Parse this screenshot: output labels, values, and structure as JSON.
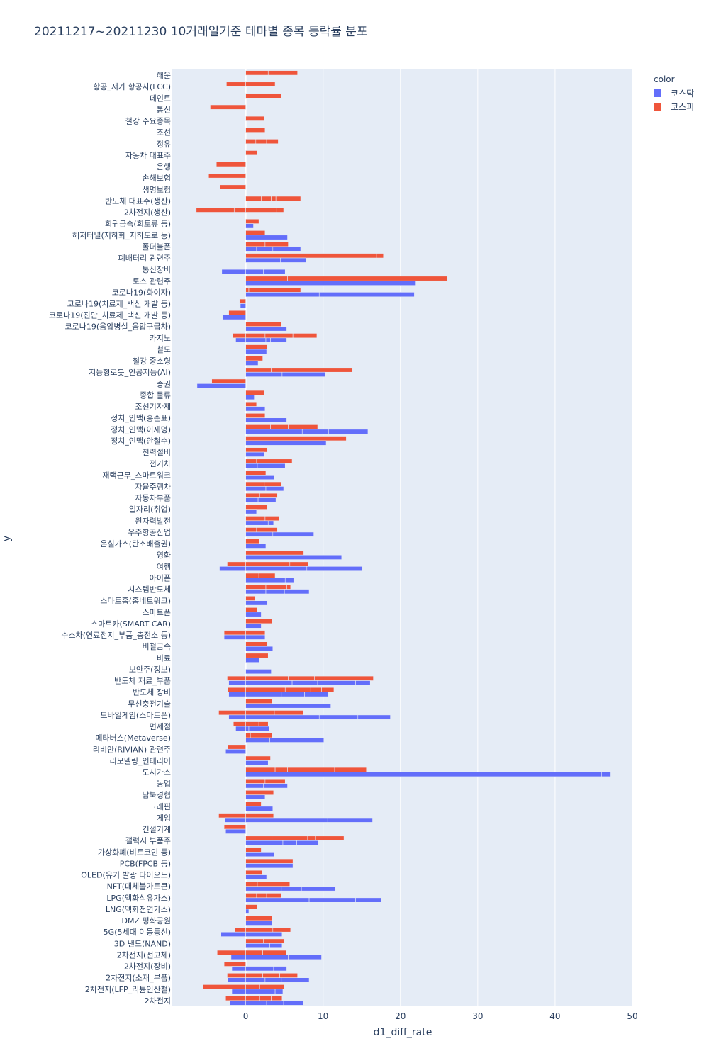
{
  "chart_data": {
    "type": "bar",
    "orientation": "horizontal",
    "barmode": "stacked-segments",
    "title": "20211217~20211230 10거래일기준 테마별 종목 등락률 분포",
    "xlabel": "d1_diff_rate",
    "ylabel": "y",
    "xlim": [
      -9.5,
      50
    ],
    "xticks": [
      0,
      10,
      20,
      30,
      40,
      50
    ],
    "grid": true,
    "legend": {
      "title": "color",
      "placement": "top-right",
      "entries": [
        {
          "name": "코스닥",
          "color": "#636efa"
        },
        {
          "name": "코스피",
          "color": "#ef553b"
        }
      ]
    },
    "series": [
      {
        "name": "코스닥",
        "color": "#636efa"
      },
      {
        "name": "코스피",
        "color": "#ef553b"
      }
    ],
    "categories": [
      {
        "label": "해운",
        "kosdaq": [],
        "kospi": [
          2.9,
          3.8
        ]
      },
      {
        "label": "항공_저가 항공사(LCC)",
        "kosdaq": [],
        "kospi": [
          -2.5,
          3.8
        ]
      },
      {
        "label": "페인트",
        "kosdaq": [],
        "kospi": [
          4.6
        ]
      },
      {
        "label": "통신",
        "kosdaq": [],
        "kospi": [
          -4.6
        ]
      },
      {
        "label": "철강 주요종목",
        "kosdaq": [],
        "kospi": [
          2.4
        ]
      },
      {
        "label": "조선",
        "kosdaq": [],
        "kospi": [
          2.5
        ]
      },
      {
        "label": "정유",
        "kosdaq": [],
        "kospi": [
          1.3,
          1.4,
          1.5
        ]
      },
      {
        "label": "자동차 대표주",
        "kosdaq": [],
        "kospi": [
          1.5
        ]
      },
      {
        "label": "은행",
        "kosdaq": [],
        "kospi": [
          -3.8
        ]
      },
      {
        "label": "손해보험",
        "kosdaq": [],
        "kospi": [
          -4.8
        ]
      },
      {
        "label": "생명보험",
        "kosdaq": [],
        "kospi": [
          -3.3
        ]
      },
      {
        "label": "반도체 대표주(생산)",
        "kosdaq": [],
        "kospi": [
          2.0,
          1.3,
          0.6,
          3.2
        ]
      },
      {
        "label": "2차전지(생산)",
        "kosdaq": [],
        "kospi": [
          -1.5,
          -4.9,
          4.0,
          0.9
        ]
      },
      {
        "label": "희귀금속(희토류 등)",
        "kosdaq": [
          1.0
        ],
        "kospi": [
          1.7
        ]
      },
      {
        "label": "해저터널(지하화_지하도로 등)",
        "kosdaq": [
          5.4
        ],
        "kospi": [
          2.5
        ]
      },
      {
        "label": "폴더블폰",
        "kosdaq": [
          1.4,
          2.1,
          3.6
        ],
        "kospi": [
          2.5,
          0.5,
          2.5
        ]
      },
      {
        "label": "폐배터리 관련주",
        "kosdaq": [
          4.5,
          3.3
        ],
        "kospi": [
          16.9,
          0.9
        ]
      },
      {
        "label": "통신장비",
        "kosdaq": [
          -3.1,
          2.3,
          2.8
        ],
        "kospi": []
      },
      {
        "label": "토스 관련주",
        "kosdaq": [
          15.3,
          6.7
        ],
        "kospi": [
          5.4,
          20.7
        ]
      },
      {
        "label": "코로나19(화이자)",
        "kosdaq": [
          9.5,
          12.3
        ],
        "kospi": [
          0.4,
          6.7
        ]
      },
      {
        "label": "코로나19(치료제_백신 개발 등)",
        "kosdaq": [
          -0.7
        ],
        "kospi": [
          -0.8
        ]
      },
      {
        "label": "코로나19(진단_치료제_백신 개발 등)",
        "kosdaq": [
          -3.0
        ],
        "kospi": [
          -2.2
        ]
      },
      {
        "label": "코로나19(음압병실_음압구급차)",
        "kosdaq": [
          5.3
        ],
        "kospi": [
          4.6
        ]
      },
      {
        "label": "카지노",
        "kosdaq": [
          -1.3,
          2.6,
          0.6,
          2.1
        ],
        "kospi": [
          -1.7,
          2.5,
          3.6,
          3.1
        ]
      },
      {
        "label": "철도",
        "kosdaq": [
          2.7
        ],
        "kospi": [
          2.8
        ]
      },
      {
        "label": "철강 중소형",
        "kosdaq": [
          1.6
        ],
        "kospi": [
          2.2
        ]
      },
      {
        "label": "지능형로봇_인공지능(AI)",
        "kosdaq": [
          4.7,
          5.6
        ],
        "kospi": [
          3.3,
          10.5
        ]
      },
      {
        "label": "증권",
        "kosdaq": [
          -6.3
        ],
        "kospi": [
          -4.4
        ]
      },
      {
        "label": "종합 물류",
        "kosdaq": [
          1.1
        ],
        "kospi": [
          2.4
        ]
      },
      {
        "label": "조선기자재",
        "kosdaq": [
          2.5
        ],
        "kospi": [
          1.4
        ]
      },
      {
        "label": "정치_인맥(홍준표)",
        "kosdaq": [
          5.3
        ],
        "kospi": [
          2.5
        ]
      },
      {
        "label": "정치_인맥(이재명)",
        "kosdaq": [
          7.3,
          3.4,
          5.1
        ],
        "kospi": [
          3.2,
          2.3,
          3.8
        ]
      },
      {
        "label": "정치_인맥(안철수)",
        "kosdaq": [
          10.4
        ],
        "kospi": [
          13.0
        ]
      },
      {
        "label": "전력설비",
        "kosdaq": [
          2.4
        ],
        "kospi": [
          2.8
        ]
      },
      {
        "label": "전기차",
        "kosdaq": [
          1.5,
          3.6
        ],
        "kospi": [
          1.4,
          4.6
        ]
      },
      {
        "label": "재택근무_스마트워크",
        "kosdaq": [
          3.7
        ],
        "kospi": [
          2.6
        ]
      },
      {
        "label": "자율주행차",
        "kosdaq": [
          2.6,
          2.3
        ],
        "kospi": [
          2.4,
          2.2
        ]
      },
      {
        "label": "자동차부품",
        "kosdaq": [
          1.6,
          2.3
        ],
        "kospi": [
          1.8,
          2.3
        ]
      },
      {
        "label": "일자리(취업)",
        "kosdaq": [
          1.4
        ],
        "kospi": [
          2.8
        ]
      },
      {
        "label": "원자력발전",
        "kosdaq": [
          2.9,
          0.7
        ],
        "kospi": [
          2.5,
          1.8
        ]
      },
      {
        "label": "우주항공산업",
        "kosdaq": [
          3.5,
          5.3
        ],
        "kospi": [
          1.4,
          2.7
        ]
      },
      {
        "label": "온실가스(탄소배출권)",
        "kosdaq": [
          2.6
        ],
        "kospi": [
          1.8
        ]
      },
      {
        "label": "영화",
        "kosdaq": [
          12.4
        ],
        "kospi": [
          7.5
        ]
      },
      {
        "label": "여행",
        "kosdaq": [
          -3.4,
          7.9,
          7.2
        ],
        "kospi": [
          -2.4,
          5.7,
          2.4
        ]
      },
      {
        "label": "아이폰",
        "kosdaq": [
          5.1,
          1.1
        ],
        "kospi": [
          1.7,
          2.1
        ]
      },
      {
        "label": "시스템반도체",
        "kosdaq": [
          2.6,
          2.4,
          3.2
        ],
        "kospi": [
          2.6,
          2.7,
          0.5
        ]
      },
      {
        "label": "스마트홈(홈네트워크)",
        "kosdaq": [
          2.8
        ],
        "kospi": [
          1.2
        ]
      },
      {
        "label": "스마트폰",
        "kosdaq": [
          2.0
        ],
        "kospi": [
          1.5
        ]
      },
      {
        "label": "스마트카(SMART CAR)",
        "kosdaq": [
          2.0
        ],
        "kospi": [
          3.4
        ]
      },
      {
        "label": "수소차(연료전지_부품_충전소 등)",
        "kosdaq": [
          -2.8,
          2.5
        ],
        "kospi": [
          -2.8,
          2.5
        ]
      },
      {
        "label": "비철금속",
        "kosdaq": [
          3.5
        ],
        "kospi": [
          2.8
        ]
      },
      {
        "label": "비료",
        "kosdaq": [
          1.8
        ],
        "kospi": [
          2.9
        ]
      },
      {
        "label": "보안주(정보)",
        "kosdaq": [
          3.3
        ],
        "kospi": []
      },
      {
        "label": "반도체 재료_부품",
        "kosdaq": [
          -2.2,
          6.0,
          3.3,
          4.9,
          1.9
        ],
        "kospi": [
          -2.4,
          5.5,
          3.4,
          3.3,
          2.2,
          2.1
        ]
      },
      {
        "label": "반도체 장비",
        "kosdaq": [
          -2.2,
          4.6,
          3.0,
          3.1
        ],
        "kospi": [
          -2.3,
          5.1,
          3.3,
          1.4,
          1.6
        ]
      },
      {
        "label": "무선충전기술",
        "kosdaq": [
          11.0
        ],
        "kospi": [
          3.4
        ]
      },
      {
        "label": "모바일게임(스마트폰)",
        "kosdaq": [
          -2.2,
          9.5,
          5.0,
          4.2
        ],
        "kospi": [
          -3.5,
          3.7,
          3.7
        ]
      },
      {
        "label": "면세점",
        "kosdaq": [
          -1.3,
          0.4,
          2.6
        ],
        "kospi": [
          -1.6,
          1.7,
          1.2
        ]
      },
      {
        "label": "메타버스(Metaverse)",
        "kosdaq": [
          3.1,
          7.0
        ],
        "kospi": [
          0.6,
          2.8
        ]
      },
      {
        "label": "리비안(RIVIAN) 관련주",
        "kosdaq": [
          -2.6
        ],
        "kospi": [
          -2.3
        ]
      },
      {
        "label": "리모델링_인테리어",
        "kosdaq": [
          2.9
        ],
        "kospi": [
          3.2
        ]
      },
      {
        "label": "도시가스",
        "kosdaq": [
          46.0,
          1.2
        ],
        "kospi": [
          3.8,
          1.6,
          6.1,
          4.1
        ]
      },
      {
        "label": "농업",
        "kosdaq": [
          2.3,
          3.1
        ],
        "kospi": [
          2.5,
          2.6
        ]
      },
      {
        "label": "남북경협",
        "kosdaq": [
          2.5
        ],
        "kospi": [
          3.6
        ]
      },
      {
        "label": "그래핀",
        "kosdaq": [
          3.5
        ],
        "kospi": [
          2.0
        ]
      },
      {
        "label": "게임",
        "kosdaq": [
          -2.7,
          10.6,
          4.7,
          1.1
        ],
        "kospi": [
          -3.5,
          1.2,
          2.4
        ]
      },
      {
        "label": "건설기계",
        "kosdaq": [
          -2.6
        ],
        "kospi": [
          -2.8
        ]
      },
      {
        "label": "갤럭시 부품주",
        "kosdaq": [
          4.8,
          1.8,
          2.8
        ],
        "kospi": [
          3.4,
          4.6,
          1.0,
          3.7
        ]
      },
      {
        "label": "가상화폐(비트코인 등)",
        "kosdaq": [
          3.7
        ],
        "kospi": [
          2.0
        ]
      },
      {
        "label": "PCB(FPCB 등)",
        "kosdaq": [
          6.1
        ],
        "kospi": [
          6.1
        ]
      },
      {
        "label": "OLED(유기 발광 다이오드)",
        "kosdaq": [
          2.7
        ],
        "kospi": [
          2.1
        ]
      },
      {
        "label": "NFT(대체불가토큰)",
        "kosdaq": [
          4.6,
          2.6,
          4.4
        ],
        "kospi": [
          1.5,
          1.5,
          2.7
        ]
      },
      {
        "label": "LPG(액화석유가스)",
        "kosdaq": [
          8.2,
          6.0,
          3.3
        ],
        "kospi": [
          1.4,
          1.3,
          1.9
        ]
      },
      {
        "label": "LNG(액화천연가스)",
        "kosdaq": [
          0.4
        ],
        "kospi": [
          1.5
        ]
      },
      {
        "label": "DMZ 평화공원",
        "kosdaq": [
          3.4
        ],
        "kospi": [
          3.4
        ]
      },
      {
        "label": "5G(5세대 이동통신)",
        "kosdaq": [
          -3.2,
          4.7
        ],
        "kospi": [
          -1.4,
          3.5,
          2.3
        ]
      },
      {
        "label": "3D 낸드(NAND)",
        "kosdaq": [
          3.1,
          1.6
        ],
        "kospi": [
          2.3,
          2.7
        ]
      },
      {
        "label": "2차전지(전고체)",
        "kosdaq": [
          -1.9,
          5.5,
          4.3
        ],
        "kospi": [
          -3.7,
          2.2,
          3.0
        ]
      },
      {
        "label": "2차전지(장비)",
        "kosdaq": [
          -1.8,
          3.6,
          1.7
        ],
        "kospi": [
          -2.8
        ]
      },
      {
        "label": "2차전지(소재_부품)",
        "kosdaq": [
          -2.3,
          2.5,
          2.1,
          3.6
        ],
        "kospi": [
          -2.4,
          2.2,
          2.2,
          2.3
        ]
      },
      {
        "label": "2차전지(LFP_리튬인산철)",
        "kosdaq": [
          -1.8,
          3.8,
          1.0
        ],
        "kospi": [
          -5.5,
          1.8,
          3.2
        ]
      },
      {
        "label": "2차전지",
        "kosdaq": [
          -2.1,
          2.7,
          2.2,
          2.5
        ],
        "kospi": [
          -2.6,
          1.8,
          1.5,
          1.4
        ]
      }
    ]
  }
}
